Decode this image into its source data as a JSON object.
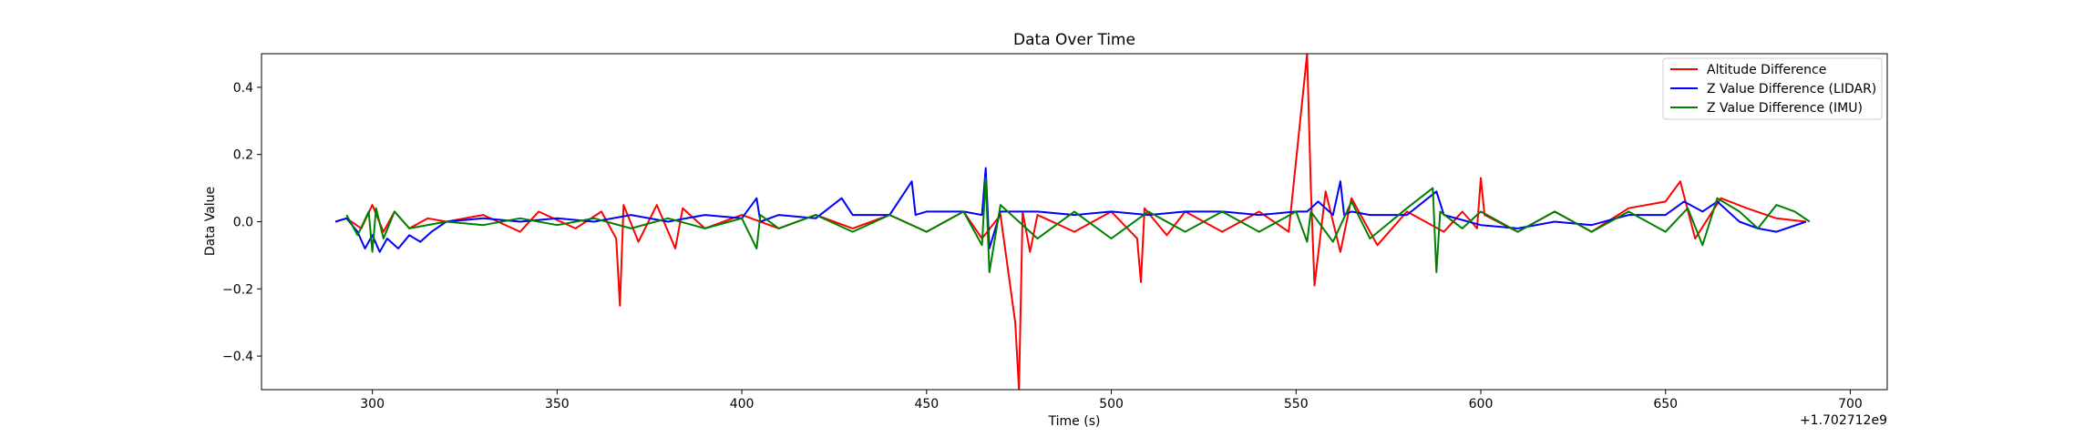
{
  "chart_data": {
    "type": "line",
    "title": "Data Over Time",
    "xlabel": "Time (s)",
    "ylabel": "Data Value",
    "x_offset_label": "+1.702712e9",
    "xlim": [
      270,
      710
    ],
    "ylim": [
      -0.5,
      0.5
    ],
    "x_ticks": [
      300,
      350,
      400,
      450,
      500,
      550,
      600,
      650,
      700
    ],
    "y_ticks": [
      -0.4,
      -0.2,
      0.0,
      0.2,
      0.4
    ],
    "x_tick_labels": [
      "300",
      "350",
      "400",
      "450",
      "500",
      "550",
      "600",
      "650",
      "700"
    ],
    "y_tick_labels": [
      "−0.4",
      "−0.2",
      "0.0",
      "0.2",
      "0.4"
    ],
    "grid": false,
    "legend_position": "top-right",
    "series": [
      {
        "name": "Altitude Difference",
        "color": "#ff0000",
        "x": [
          290,
          293,
          297,
          300,
          303,
          306,
          310,
          315,
          320,
          330,
          340,
          345,
          355,
          362,
          366,
          367,
          368,
          372,
          377,
          382,
          384,
          390,
          400,
          410,
          420,
          430,
          440,
          450,
          460,
          465,
          470,
          474,
          475,
          476,
          478,
          480,
          490,
          500,
          507,
          508,
          509,
          515,
          520,
          530,
          540,
          548,
          553,
          554,
          555,
          558,
          562,
          565,
          572,
          580,
          590,
          595,
          599,
          600,
          601,
          610,
          620,
          630,
          640,
          650,
          654,
          658,
          665,
          672,
          680,
          688
        ],
        "y": [
          0.0,
          0.01,
          -0.02,
          0.05,
          -0.03,
          0.03,
          -0.02,
          0.01,
          0.0,
          0.02,
          -0.03,
          0.03,
          -0.02,
          0.03,
          -0.05,
          -0.25,
          0.05,
          -0.06,
          0.05,
          -0.08,
          0.04,
          -0.02,
          0.02,
          -0.02,
          0.02,
          -0.02,
          0.02,
          -0.03,
          0.03,
          -0.05,
          0.02,
          -0.3,
          -0.5,
          0.03,
          -0.09,
          0.02,
          -0.03,
          0.03,
          -0.05,
          -0.18,
          0.04,
          -0.04,
          0.03,
          -0.03,
          0.03,
          -0.03,
          0.5,
          0.1,
          -0.19,
          0.09,
          -0.09,
          0.07,
          -0.07,
          0.03,
          -0.03,
          0.03,
          -0.02,
          0.13,
          0.02,
          -0.03,
          0.03,
          -0.03,
          0.04,
          0.06,
          0.12,
          -0.05,
          0.07,
          0.04,
          0.01,
          0.0
        ]
      },
      {
        "name": "Z Value Difference (LIDAR)",
        "color": "#0000ff",
        "x": [
          290,
          293,
          296,
          298,
          300,
          302,
          304,
          307,
          310,
          313,
          316,
          320,
          330,
          340,
          350,
          360,
          370,
          380,
          390,
          400,
          404,
          405,
          410,
          420,
          427,
          430,
          440,
          446,
          447,
          450,
          460,
          465,
          466,
          467,
          470,
          480,
          490,
          500,
          510,
          520,
          530,
          540,
          550,
          553,
          556,
          560,
          562,
          563,
          565,
          570,
          580,
          588,
          590,
          600,
          610,
          620,
          630,
          640,
          650,
          655,
          660,
          664,
          670,
          675,
          680,
          688
        ],
        "y": [
          0.0,
          0.01,
          -0.03,
          -0.08,
          -0.04,
          -0.09,
          -0.05,
          -0.08,
          -0.04,
          -0.06,
          -0.03,
          0.0,
          0.01,
          0.0,
          0.01,
          0.0,
          0.02,
          0.0,
          0.02,
          0.01,
          0.07,
          0.0,
          0.02,
          0.01,
          0.07,
          0.02,
          0.02,
          0.12,
          0.02,
          0.03,
          0.03,
          0.02,
          0.16,
          -0.08,
          0.03,
          0.03,
          0.02,
          0.03,
          0.02,
          0.03,
          0.03,
          0.02,
          0.03,
          0.03,
          0.06,
          0.02,
          0.12,
          0.02,
          0.03,
          0.02,
          0.02,
          0.09,
          0.02,
          -0.01,
          -0.02,
          0.0,
          -0.01,
          0.02,
          0.02,
          0.06,
          0.03,
          0.06,
          0.0,
          -0.02,
          -0.03,
          0.0
        ]
      },
      {
        "name": "Z Value Difference (IMU)",
        "color": "#008000",
        "x": [
          293,
          296,
          299,
          300,
          301,
          303,
          306,
          310,
          320,
          330,
          340,
          350,
          360,
          370,
          380,
          390,
          400,
          404,
          405,
          410,
          420,
          430,
          440,
          450,
          460,
          465,
          466,
          467,
          470,
          480,
          490,
          500,
          510,
          520,
          530,
          540,
          550,
          553,
          554,
          560,
          565,
          570,
          580,
          587,
          588,
          589,
          595,
          600,
          610,
          620,
          630,
          640,
          650,
          656,
          660,
          664,
          670,
          675,
          680,
          685,
          689
        ],
        "y": [
          0.02,
          -0.04,
          0.03,
          -0.09,
          0.04,
          -0.05,
          0.03,
          -0.02,
          0.0,
          -0.01,
          0.01,
          -0.01,
          0.01,
          -0.02,
          0.01,
          -0.02,
          0.01,
          -0.08,
          0.02,
          -0.02,
          0.02,
          -0.03,
          0.02,
          -0.03,
          0.03,
          -0.07,
          0.13,
          -0.15,
          0.05,
          -0.05,
          0.03,
          -0.05,
          0.03,
          -0.03,
          0.03,
          -0.03,
          0.03,
          -0.06,
          0.03,
          -0.06,
          0.06,
          -0.05,
          0.04,
          0.1,
          -0.15,
          0.03,
          -0.02,
          0.03,
          -0.03,
          0.03,
          -0.03,
          0.03,
          -0.03,
          0.04,
          -0.07,
          0.07,
          0.03,
          -0.02,
          0.05,
          0.03,
          0.0
        ]
      }
    ]
  }
}
